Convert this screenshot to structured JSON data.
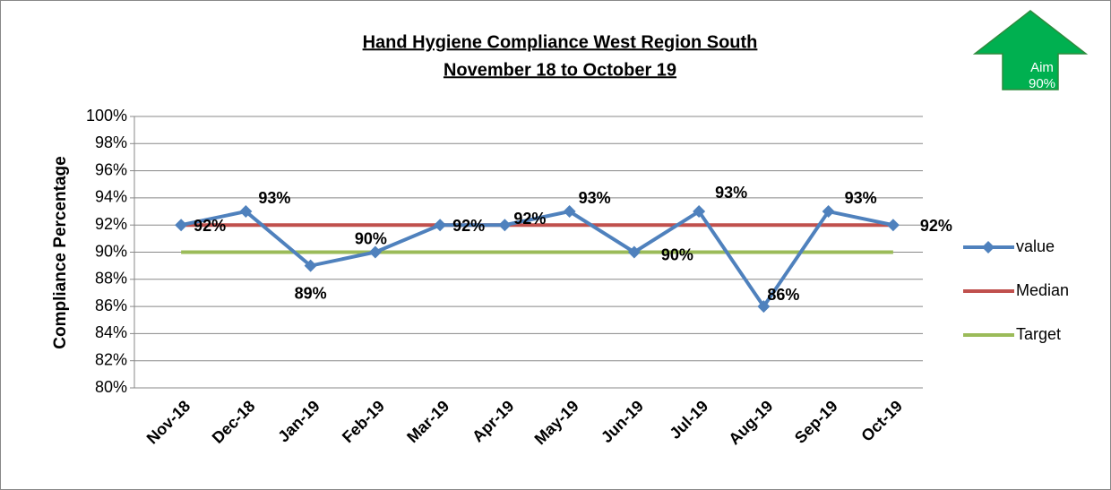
{
  "chart_data": {
    "type": "line",
    "title": [
      "Hand Hygiene Compliance West Region South",
      "November 18 to October 19"
    ],
    "y_label": "Compliance Percentage",
    "annotation": [
      "Aim",
      "90%"
    ],
    "categories": [
      "Nov-18",
      "Dec-18",
      "Jan-19",
      "Feb-19",
      "Mar-19",
      "Apr-19",
      "May-19",
      "Jun-19",
      "Jul-19",
      "Aug-19",
      "Sep-19",
      "Oct-19"
    ],
    "series": [
      {
        "name": "value",
        "color": "#4f81bd",
        "marker": "diamond",
        "values": [
          92,
          93,
          89,
          90,
          92,
          92,
          93,
          90,
          93,
          86,
          93,
          92
        ],
        "value_labels": [
          "92%",
          "93%",
          "89%",
          "90%",
          "92%",
          "92%",
          "93%",
          "90%",
          "93%",
          "86%",
          "93%",
          "92%"
        ]
      },
      {
        "name": "Median",
        "color": "#c0504d",
        "values": [
          92,
          92,
          92,
          92,
          92,
          92,
          92,
          92,
          92,
          92,
          92,
          92
        ]
      },
      {
        "name": "Target",
        "color": "#9bbb59",
        "values": [
          90,
          90,
          90,
          90,
          90,
          90,
          90,
          90,
          90,
          90,
          90,
          90
        ]
      }
    ],
    "ylim": [
      80,
      100
    ],
    "yticks": [
      {
        "value": 80,
        "label": "80%"
      },
      {
        "value": 82,
        "label": "82%"
      },
      {
        "value": 84,
        "label": "84%"
      },
      {
        "value": 86,
        "label": "86%"
      },
      {
        "value": 88,
        "label": "88%"
      },
      {
        "value": 90,
        "label": "90%"
      },
      {
        "value": 92,
        "label": "92%"
      },
      {
        "value": 94,
        "label": "94%"
      },
      {
        "value": 96,
        "label": "96%"
      },
      {
        "value": 98,
        "label": "98%"
      },
      {
        "value": 100,
        "label": "100%"
      }
    ],
    "grid": true,
    "legend": "right"
  }
}
